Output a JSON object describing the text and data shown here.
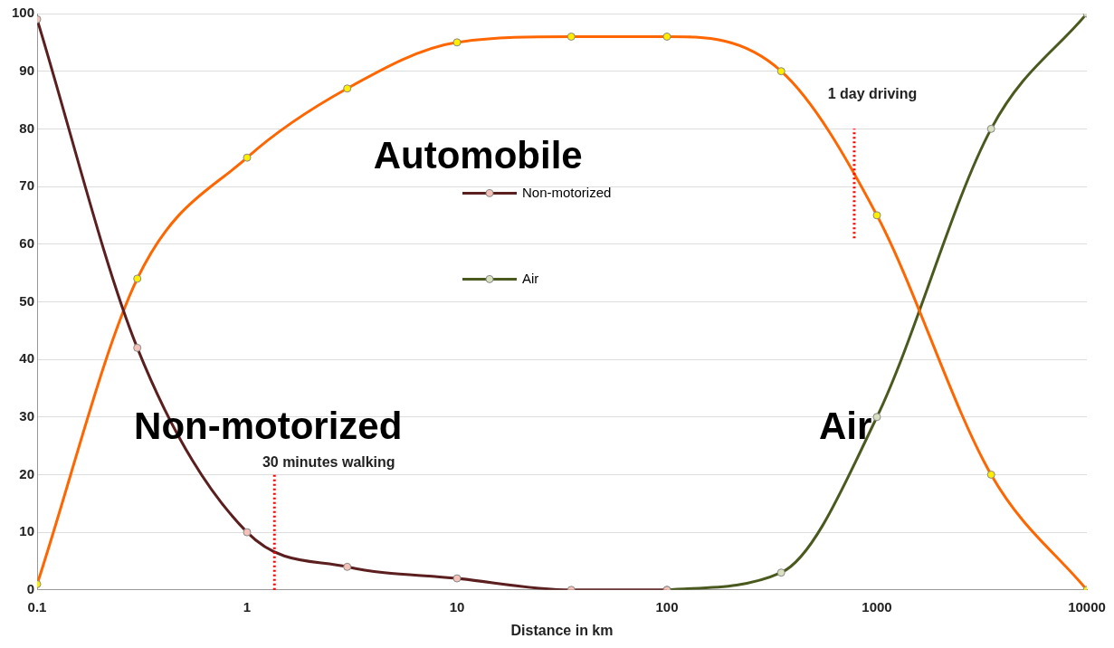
{
  "chart_data": {
    "type": "line",
    "xlabel": "Distance in km",
    "log": "x",
    "xlim": [
      0.1,
      10000
    ],
    "xticks": [
      0.1,
      1,
      10,
      100,
      1000,
      10000
    ],
    "ylim": [
      0,
      100
    ],
    "yticks": [
      0,
      10,
      20,
      30,
      40,
      50,
      60,
      70,
      80,
      90,
      100
    ],
    "grid": "y",
    "legend": "center",
    "marker": "circle",
    "line_style": "solid",
    "series": [
      {
        "name": "Non-motorized",
        "color": "#5c1f1f",
        "x": [
          0.1,
          0.3,
          1,
          3,
          10,
          35,
          100
        ],
        "values": [
          99,
          42,
          10,
          4,
          2,
          0,
          0
        ]
      },
      {
        "color": "#ff6600",
        "x": [
          0.1,
          0.3,
          1,
          3,
          10,
          35,
          100,
          350,
          1000,
          3500,
          10000
        ],
        "values": [
          1,
          54,
          75,
          87,
          95,
          96,
          96,
          90,
          65,
          20,
          0
        ]
      },
      {
        "name": "Air",
        "color": "#4a5a1e",
        "x": [
          100,
          350,
          1000,
          3500,
          10000
        ],
        "values": [
          0,
          3,
          30,
          80,
          100
        ]
      }
    ],
    "ref_lines": [
      {
        "axis": "x",
        "value": 1.35,
        "label": "30 minutes walking",
        "color": "#ff0000",
        "line_style": "dotted"
      },
      {
        "axis": "x",
        "value": 780,
        "label": "1 day driving",
        "color": "#ff0000",
        "line_style": "dotted"
      }
    ],
    "annotations": [
      "Automobile",
      "Non-motorized",
      "Air"
    ]
  }
}
